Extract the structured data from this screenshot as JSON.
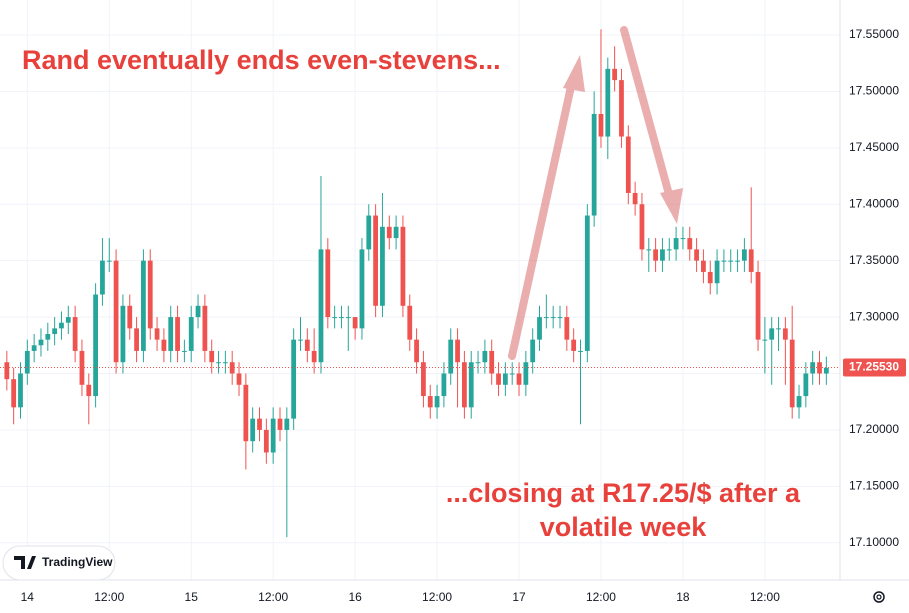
{
  "chart_data": {
    "type": "candlestick",
    "annotations": [
      {
        "lines": [
          "Rand eventually ends even-stevens..."
        ]
      },
      {
        "lines": [
          "...closing at R17.25/$ after a",
          "volatile week"
        ]
      }
    ],
    "watermark": "TradingView",
    "up_color": "#26a69a",
    "down_color": "#ef5350",
    "grid": true,
    "xlim": [
      -4,
      119
    ],
    "ylim": [
      17.067,
      17.581
    ],
    "xticks": [
      {
        "value": 0,
        "label": "14"
      },
      {
        "value": 12,
        "label": "12:00"
      },
      {
        "value": 24,
        "label": "15"
      },
      {
        "value": 36,
        "label": "12:00"
      },
      {
        "value": 48,
        "label": "16"
      },
      {
        "value": 60,
        "label": "12:00"
      },
      {
        "value": 72,
        "label": "17"
      },
      {
        "value": 84,
        "label": "12:00"
      },
      {
        "value": 96,
        "label": "18"
      },
      {
        "value": 108,
        "label": "12:00"
      }
    ],
    "yticks": [
      {
        "value": 17.1,
        "label": "17.10000"
      },
      {
        "value": 17.15,
        "label": "17.15000"
      },
      {
        "value": 17.2,
        "label": "17.20000"
      },
      {
        "value": 17.25,
        "label": "17.25000"
      },
      {
        "value": 17.3,
        "label": "17.30000"
      },
      {
        "value": 17.35,
        "label": "17.35000"
      },
      {
        "value": 17.4,
        "label": "17.40000"
      },
      {
        "value": 17.45,
        "label": "17.45000"
      },
      {
        "value": 17.5,
        "label": "17.50000"
      },
      {
        "value": 17.55,
        "label": "17.55000"
      }
    ],
    "last_price": {
      "value": 17.2553,
      "label": "17.25530"
    },
    "x": [
      -3,
      -2,
      -1,
      0,
      1,
      2,
      3,
      4,
      5,
      6,
      7,
      8,
      9,
      10,
      11,
      12,
      13,
      14,
      15,
      16,
      17,
      18,
      19,
      20,
      21,
      22,
      23,
      24,
      25,
      26,
      27,
      28,
      29,
      30,
      31,
      32,
      33,
      34,
      35,
      36,
      37,
      38,
      39,
      40,
      41,
      42,
      43,
      44,
      45,
      46,
      47,
      48,
      49,
      50,
      51,
      52,
      53,
      54,
      55,
      56,
      57,
      58,
      59,
      60,
      61,
      62,
      63,
      64,
      65,
      66,
      67,
      68,
      69,
      70,
      71,
      72,
      73,
      74,
      75,
      76,
      77,
      78,
      79,
      80,
      81,
      82,
      83,
      84,
      85,
      86,
      87,
      88,
      89,
      90,
      91,
      92,
      93,
      94,
      95,
      96,
      97,
      98,
      99,
      100,
      101,
      102,
      103,
      104,
      105,
      106,
      107,
      108,
      109,
      110,
      111,
      112,
      113,
      114,
      115,
      116,
      117
    ],
    "open": [
      17.26,
      17.245,
      17.22,
      17.25,
      17.27,
      17.275,
      17.28,
      17.285,
      17.29,
      17.295,
      17.3,
      17.27,
      17.24,
      17.23,
      17.32,
      17.35,
      17.35,
      17.26,
      17.31,
      17.29,
      17.27,
      17.35,
      17.29,
      17.28,
      17.27,
      17.3,
      17.27,
      17.27,
      17.3,
      17.31,
      17.27,
      17.26,
      17.26,
      17.26,
      17.25,
      17.24,
      17.19,
      17.21,
      17.2,
      17.18,
      17.21,
      17.2,
      17.21,
      17.28,
      17.28,
      17.27,
      17.26,
      17.36,
      17.3,
      17.3,
      17.3,
      17.3,
      17.29,
      17.36,
      17.39,
      17.31,
      17.38,
      17.37,
      17.38,
      17.31,
      17.28,
      17.26,
      17.23,
      17.22,
      17.23,
      17.25,
      17.28,
      17.26,
      17.22,
      17.26,
      17.26,
      17.27,
      17.25,
      17.24,
      17.25,
      17.25,
      17.24,
      17.26,
      17.28,
      17.3,
      17.3,
      17.3,
      17.3,
      17.28,
      17.27,
      17.27,
      17.39,
      17.48,
      17.46,
      17.52,
      17.51,
      17.46,
      17.41,
      17.4,
      17.36,
      17.36,
      17.35,
      17.36,
      17.36,
      17.37,
      17.37,
      17.36,
      17.35,
      17.34,
      17.33,
      17.35,
      17.35,
      17.35,
      17.35,
      17.36,
      17.34,
      17.28,
      17.28,
      17.29,
      17.29,
      17.28,
      17.22,
      17.23,
      17.25,
      17.26,
      17.25
    ],
    "high": [
      17.27,
      17.255,
      17.26,
      17.28,
      17.285,
      17.29,
      17.295,
      17.3,
      17.305,
      17.31,
      17.31,
      17.28,
      17.25,
      17.33,
      17.37,
      17.37,
      17.36,
      17.32,
      17.32,
      17.3,
      17.36,
      17.36,
      17.3,
      17.29,
      17.31,
      17.31,
      17.28,
      17.31,
      17.32,
      17.32,
      17.28,
      17.27,
      17.27,
      17.27,
      17.26,
      17.25,
      17.22,
      17.22,
      17.21,
      17.22,
      17.22,
      17.22,
      17.29,
      17.3,
      17.29,
      17.29,
      17.425,
      17.37,
      17.31,
      17.31,
      17.31,
      17.3,
      17.37,
      17.4,
      17.4,
      17.41,
      17.39,
      17.39,
      17.39,
      17.32,
      17.29,
      17.27,
      17.24,
      17.24,
      17.26,
      17.29,
      17.29,
      17.27,
      17.27,
      17.27,
      17.28,
      17.28,
      17.26,
      17.26,
      17.26,
      17.26,
      17.27,
      17.29,
      17.31,
      17.32,
      17.31,
      17.31,
      17.31,
      17.29,
      17.28,
      17.4,
      17.5,
      17.555,
      17.53,
      17.54,
      17.52,
      17.47,
      17.42,
      17.41,
      17.37,
      17.37,
      17.37,
      17.37,
      17.38,
      17.38,
      17.38,
      17.37,
      17.36,
      17.35,
      17.36,
      17.36,
      17.36,
      17.36,
      17.37,
      17.415,
      17.35,
      17.3,
      17.3,
      17.3,
      17.3,
      17.31,
      17.24,
      17.26,
      17.27,
      17.27,
      17.265
    ],
    "low": [
      17.235,
      17.205,
      17.21,
      17.24,
      17.26,
      17.265,
      17.27,
      17.275,
      17.28,
      17.285,
      17.26,
      17.23,
      17.205,
      17.22,
      17.31,
      17.34,
      17.25,
      17.25,
      17.28,
      17.26,
      17.26,
      17.28,
      17.27,
      17.26,
      17.26,
      17.26,
      17.26,
      17.26,
      17.29,
      17.26,
      17.25,
      17.25,
      17.25,
      17.24,
      17.23,
      17.165,
      17.18,
      17.19,
      17.17,
      17.17,
      17.19,
      17.105,
      17.2,
      17.27,
      17.26,
      17.25,
      17.25,
      17.29,
      17.29,
      17.29,
      17.27,
      17.28,
      17.28,
      17.35,
      17.3,
      17.3,
      17.36,
      17.36,
      17.3,
      17.27,
      17.25,
      17.22,
      17.21,
      17.21,
      17.22,
      17.24,
      17.22,
      17.21,
      17.21,
      17.25,
      17.25,
      17.24,
      17.23,
      17.23,
      17.24,
      17.23,
      17.23,
      17.25,
      17.27,
      17.29,
      17.29,
      17.29,
      17.27,
      17.26,
      17.205,
      17.26,
      17.38,
      17.45,
      17.44,
      17.5,
      17.45,
      17.4,
      17.39,
      17.35,
      17.34,
      17.34,
      17.34,
      17.35,
      17.35,
      17.36,
      17.35,
      17.34,
      17.33,
      17.32,
      17.32,
      17.34,
      17.34,
      17.34,
      17.34,
      17.33,
      17.27,
      17.25,
      17.24,
      17.27,
      17.24,
      17.21,
      17.21,
      17.22,
      17.24,
      17.24,
      17.24
    ],
    "close": [
      17.245,
      17.22,
      17.25,
      17.27,
      17.275,
      17.28,
      17.285,
      17.29,
      17.295,
      17.3,
      17.27,
      17.24,
      17.23,
      17.32,
      17.35,
      17.35,
      17.26,
      17.31,
      17.29,
      17.27,
      17.35,
      17.29,
      17.28,
      17.27,
      17.3,
      17.27,
      17.27,
      17.3,
      17.31,
      17.27,
      17.26,
      17.26,
      17.26,
      17.25,
      17.24,
      17.19,
      17.21,
      17.2,
      17.18,
      17.21,
      17.2,
      17.21,
      17.28,
      17.28,
      17.27,
      17.26,
      17.36,
      17.3,
      17.3,
      17.3,
      17.3,
      17.29,
      17.36,
      17.39,
      17.31,
      17.38,
      17.37,
      17.38,
      17.31,
      17.28,
      17.26,
      17.23,
      17.22,
      17.23,
      17.25,
      17.28,
      17.26,
      17.22,
      17.26,
      17.26,
      17.27,
      17.25,
      17.24,
      17.25,
      17.25,
      17.24,
      17.26,
      17.28,
      17.3,
      17.3,
      17.3,
      17.3,
      17.28,
      17.27,
      17.27,
      17.39,
      17.48,
      17.46,
      17.52,
      17.51,
      17.46,
      17.41,
      17.4,
      17.36,
      17.36,
      17.35,
      17.36,
      17.36,
      17.37,
      17.37,
      17.36,
      17.35,
      17.34,
      17.33,
      17.35,
      17.35,
      17.35,
      17.35,
      17.36,
      17.34,
      17.28,
      17.28,
      17.29,
      17.29,
      17.28,
      17.22,
      17.23,
      17.25,
      17.26,
      17.25,
      17.255
    ]
  }
}
